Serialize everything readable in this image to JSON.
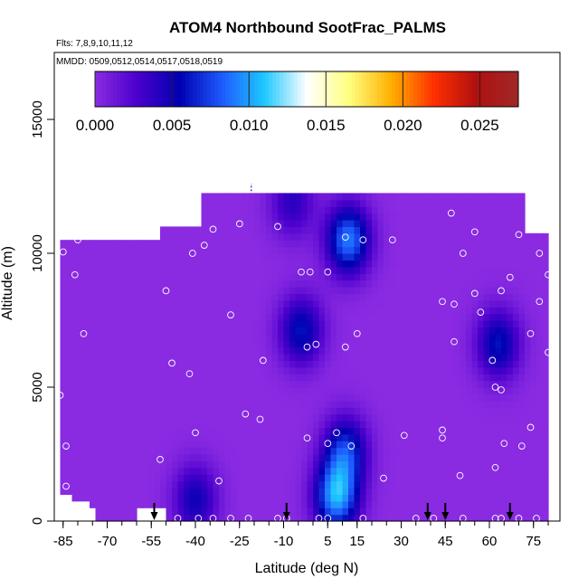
{
  "chart_data": {
    "type": "heatmap",
    "title": "ATOM4 Northbound SootFrac_PALMS",
    "subtitle_flights": "Flts: 7,8,9,10,11,12",
    "subtitle_dates": "MMDD: 0509,0512,0514,0517,0518,0519",
    "xlabel": "Latitude (deg N)",
    "ylabel": "Altitude (m)",
    "xlim": [
      -88,
      84
    ],
    "ylim": [
      0,
      17500
    ],
    "x_ticks": [
      -85,
      -70,
      -55,
      -40,
      -25,
      -10,
      5,
      15,
      30,
      45,
      60,
      75
    ],
    "x_minor_step": 5,
    "y_ticks": [
      0,
      5000,
      10000,
      15000
    ],
    "colorbar": {
      "range": [
        0,
        0.0275
      ],
      "ticks": [
        "0.000",
        "0.005",
        "0.010",
        "0.015",
        "0.020",
        "0.025"
      ],
      "tick_values": [
        0,
        0.005,
        0.01,
        0.015,
        0.02,
        0.025
      ],
      "colors": [
        "#8a2be2",
        "#4b00cc",
        "#0000b0",
        "#1e5aff",
        "#1ec8ff",
        "#ffffff",
        "#ffff80",
        "#ffb000",
        "#ff3000",
        "#b01010",
        "#a02828"
      ]
    },
    "background_value": 0.0,
    "coverage": {
      "lat_min": -86,
      "lat_max": 80,
      "alt_top_m": 12050,
      "left_edge_alt_m": 10500,
      "right_edge_alt_m": 10700
    },
    "features": [
      {
        "lat": -41,
        "alt_m": 700,
        "value": 0.005
      },
      {
        "lat": -5,
        "alt_m": 7000,
        "value": 0.006
      },
      {
        "lat": 10,
        "alt_m": 2500,
        "value": 0.007
      },
      {
        "lat": 7,
        "alt_m": 800,
        "value": 0.01
      },
      {
        "lat": 62,
        "alt_m": 6500,
        "value": 0.006
      },
      {
        "lat": 11,
        "alt_m": 10400,
        "value": 0.009
      },
      {
        "lat": -8,
        "alt_m": 11800,
        "value": 0.004
      }
    ],
    "sample_points": [
      [
        -85,
        10050
      ],
      [
        -81,
        9200
      ],
      [
        -78,
        7000
      ],
      [
        -86,
        4700
      ],
      [
        -84,
        2800
      ],
      [
        -84,
        1300
      ],
      [
        -80,
        10500
      ],
      [
        -50,
        8600
      ],
      [
        -48,
        5900
      ],
      [
        -42,
        5500
      ],
      [
        -40,
        3300
      ],
      [
        -41,
        10000
      ],
      [
        -37,
        10300
      ],
      [
        -34,
        10900
      ],
      [
        -28,
        7700
      ],
      [
        -25,
        11100
      ],
      [
        -23,
        4000
      ],
      [
        -18,
        3800
      ],
      [
        -17,
        6000
      ],
      [
        -52,
        2300
      ],
      [
        -52,
        200
      ],
      [
        -12,
        11000
      ],
      [
        -4,
        9300
      ],
      [
        -1,
        9300
      ],
      [
        -2,
        3100
      ],
      [
        -2,
        6500
      ],
      [
        1,
        6600
      ],
      [
        5,
        9300
      ],
      [
        5,
        2900
      ],
      [
        8,
        3300
      ],
      [
        11,
        6500
      ],
      [
        13,
        2800
      ],
      [
        15,
        7000
      ],
      [
        11,
        10600
      ],
      [
        17,
        10500
      ],
      [
        27,
        10500
      ],
      [
        31,
        3200
      ],
      [
        44,
        8200
      ],
      [
        47,
        11500
      ],
      [
        48,
        6700
      ],
      [
        48,
        8100
      ],
      [
        51,
        10000
      ],
      [
        55,
        8500
      ],
      [
        55,
        10800
      ],
      [
        57,
        7800
      ],
      [
        61,
        6000
      ],
      [
        62,
        5000
      ],
      [
        64,
        4900
      ],
      [
        62,
        2000
      ],
      [
        65,
        2900
      ],
      [
        71,
        2800
      ],
      [
        74,
        3500
      ],
      [
        67,
        9100
      ],
      [
        64,
        8600
      ],
      [
        70,
        10700
      ],
      [
        75,
        11500
      ],
      [
        74,
        7000
      ],
      [
        77,
        8200
      ],
      [
        77,
        10000
      ],
      [
        80,
        9200
      ],
      [
        80,
        6300
      ],
      [
        44,
        3400
      ],
      [
        44,
        3100
      ],
      [
        50,
        1700
      ],
      [
        24,
        1600
      ],
      [
        -56,
        100
      ],
      [
        -46,
        100
      ],
      [
        -39,
        100
      ],
      [
        -32,
        1500
      ],
      [
        -34,
        100
      ],
      [
        -28,
        100
      ],
      [
        -22,
        100
      ],
      [
        -12,
        100
      ],
      [
        -9,
        100
      ],
      [
        2,
        100
      ],
      [
        5,
        100
      ],
      [
        17,
        100
      ],
      [
        35,
        100
      ],
      [
        41,
        100
      ],
      [
        51,
        100
      ],
      [
        62,
        100
      ],
      [
        64,
        100
      ],
      [
        70,
        100
      ],
      [
        76,
        100
      ]
    ],
    "flight_arrows_lat": [
      -54,
      -9,
      39,
      45,
      67
    ]
  }
}
